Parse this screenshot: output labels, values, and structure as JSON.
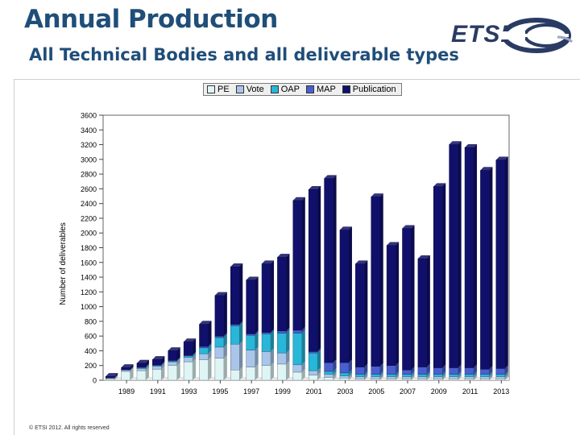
{
  "header": {
    "title": "Annual Production",
    "subtitle": "All Technical Bodies and all deliverable types"
  },
  "logo": {
    "text": "ETSI"
  },
  "footer": {
    "copyright": "© ETSI 2012. All rights reserved"
  },
  "colors": {
    "PE": "#dff5f5",
    "Vote": "#a9c6ea",
    "OAP": "#29b6d8",
    "MAP": "#4a5fcf",
    "Publication": "#10106c"
  },
  "chart_data": {
    "type": "bar",
    "stacked": true,
    "title": "",
    "xlabel": "",
    "ylabel": "Number of deliverables",
    "ylim": [
      0,
      3600
    ],
    "yticks": [
      0,
      200,
      400,
      600,
      800,
      1000,
      1200,
      1400,
      1600,
      1800,
      2000,
      2200,
      2400,
      2600,
      2800,
      3000,
      3200,
      3400,
      3600
    ],
    "xtick_labels": [
      "1989",
      "1991",
      "1993",
      "1995",
      "1997",
      "1999",
      "2001",
      "2003",
      "2005",
      "2007",
      "2009",
      "2011",
      "2013"
    ],
    "legend_position": "top-center",
    "categories": [
      "1988",
      "1989",
      "1990",
      "1991",
      "1992",
      "1993",
      "1994",
      "1995",
      "1996",
      "1997",
      "1998",
      "1999",
      "2000",
      "2001",
      "2002",
      "2003",
      "2004",
      "2005",
      "2006",
      "2007",
      "2008",
      "2009",
      "2010",
      "2011",
      "2012",
      "2013"
    ],
    "series": [
      {
        "name": "PE",
        "values": [
          20,
          120,
          130,
          150,
          200,
          250,
          280,
          300,
          140,
          180,
          200,
          220,
          110,
          70,
          40,
          30,
          20,
          20,
          20,
          20,
          20,
          20,
          20,
          20,
          20,
          20
        ]
      },
      {
        "name": "Vote",
        "values": [
          10,
          20,
          30,
          40,
          50,
          60,
          80,
          150,
          350,
          230,
          190,
          150,
          100,
          60,
          40,
          30,
          30,
          30,
          30,
          30,
          30,
          30,
          30,
          30,
          30,
          30
        ]
      },
      {
        "name": "OAP",
        "values": [
          0,
          0,
          10,
          10,
          10,
          20,
          80,
          130,
          250,
          200,
          240,
          270,
          430,
          240,
          40,
          40,
          30,
          30,
          30,
          30,
          30,
          30,
          30,
          30,
          30,
          30
        ]
      },
      {
        "name": "MAP",
        "values": [
          0,
          0,
          10,
          10,
          10,
          10,
          20,
          20,
          20,
          20,
          20,
          30,
          40,
          20,
          120,
          140,
          100,
          110,
          120,
          60,
          100,
          90,
          90,
          90,
          70,
          80
        ]
      },
      {
        "name": "Publication",
        "values": [
          20,
          30,
          50,
          70,
          130,
          180,
          300,
          550,
          780,
          730,
          930,
          1000,
          1760,
          2200,
          2500,
          1800,
          1400,
          2300,
          1630,
          1920,
          1470,
          2460,
          3030,
          2990,
          2700,
          2830
        ]
      }
    ]
  }
}
